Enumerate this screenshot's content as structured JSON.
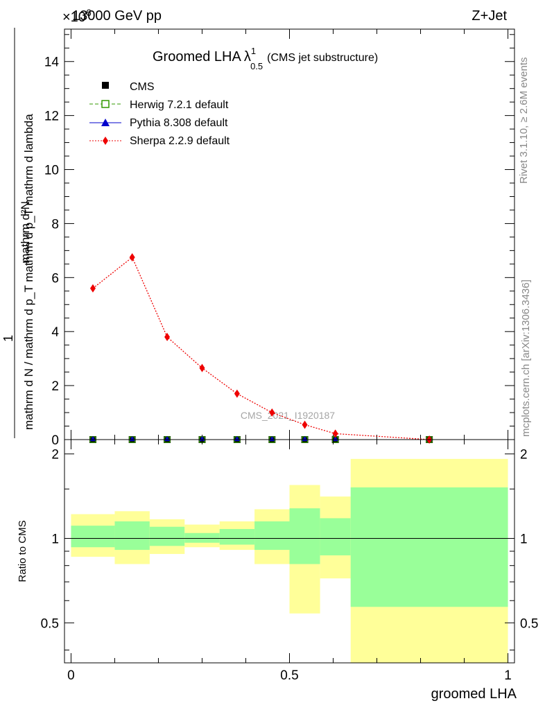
{
  "header": {
    "left": "13000 GeV pp",
    "right": "Z+Jet",
    "exponent_base": "×10",
    "exponent": "6"
  },
  "side_labels": {
    "rivet": "Rivet 3.1.10, ≥ 2.6M events",
    "mcplots": "mcplots.cern.ch [arXiv:1306.3436]"
  },
  "watermark": "CMS_2021_I1920187",
  "colors": {
    "cms": "#000000",
    "herwig": "#339900",
    "pythia": "#0000cc",
    "sherpa": "#ee0000",
    "band_inner": "#99ff99",
    "band_outer": "#ffff99"
  },
  "chart_data": [
    {
      "type": "line",
      "title_main": "Groomed LHA",
      "title_symbol": "λ",
      "title_sup": "1",
      "title_sub": "0.5",
      "title_note": "(CMS jet substructure)",
      "ylabel_numerator": "1",
      "ylabel_denominator": "mathrm d N / mathrm d p_T mathrm d p_T mathrm d lambda",
      "ylabel_top": "mathrm d²N",
      "ylabel_bottom": "mathrm d N / mathrm d p_T mathrm d p_T mathrm d lambda",
      "xlim": [
        -0.015,
        1.015
      ],
      "ylim": [
        0,
        15.2
      ],
      "y_scale_factor": "×10^6",
      "yticks": [
        0,
        2,
        4,
        6,
        8,
        10,
        12,
        14
      ],
      "ytick_labels": [
        "0",
        "2",
        "4",
        "6",
        "8",
        "10",
        "12",
        "14"
      ],
      "grid": false,
      "legend_position": "top-left",
      "legend": [
        {
          "key": "cms",
          "label": "CMS"
        },
        {
          "key": "herwig",
          "label": "Herwig 7.2.1 default"
        },
        {
          "key": "pythia",
          "label": "Pythia 8.308 default"
        },
        {
          "key": "sherpa",
          "label": "Sherpa 2.2.9 default"
        }
      ],
      "x_points": [
        0.05,
        0.14,
        0.22,
        0.3,
        0.38,
        0.46,
        0.535,
        0.605,
        0.82
      ],
      "series": [
        {
          "name": "CMS",
          "key": "cms",
          "values": [
            0,
            0,
            0,
            0,
            0,
            0,
            0,
            0,
            0
          ]
        },
        {
          "name": "Herwig 7.2.1 default",
          "key": "herwig",
          "values": [
            0,
            0,
            0,
            0,
            0,
            0,
            0,
            0,
            0
          ]
        },
        {
          "name": "Pythia 8.308 default",
          "key": "pythia",
          "values": [
            0,
            0,
            0,
            0,
            0,
            0,
            0,
            0,
            0
          ]
        },
        {
          "name": "Sherpa 2.2.9 default",
          "key": "sherpa",
          "values": [
            5.6,
            6.75,
            3.8,
            2.65,
            1.7,
            1.0,
            0.55,
            0.22,
            0.0
          ]
        }
      ]
    },
    {
      "type": "area",
      "ylabel": "Ratio to CMS",
      "xlabel": "groomed LHA",
      "xlim": [
        -0.015,
        1.015
      ],
      "ylim": [
        0.36,
        2.25
      ],
      "y_scale": "log",
      "yticks": [
        0.5,
        1,
        2
      ],
      "ytick_labels": [
        "0.5",
        "1",
        "2"
      ],
      "xticks": [
        0,
        0.5,
        1
      ],
      "xtick_labels": [
        "0",
        "0.5",
        "1"
      ],
      "reference_line": 1,
      "bins": [
        {
          "lo": 0.0,
          "hi": 0.1,
          "inner": [
            0.93,
            1.11
          ],
          "outer": [
            0.86,
            1.22
          ]
        },
        {
          "lo": 0.1,
          "hi": 0.18,
          "inner": [
            0.91,
            1.15
          ],
          "outer": [
            0.81,
            1.25
          ]
        },
        {
          "lo": 0.18,
          "hi": 0.26,
          "inner": [
            0.94,
            1.1
          ],
          "outer": [
            0.88,
            1.17
          ]
        },
        {
          "lo": 0.26,
          "hi": 0.34,
          "inner": [
            0.965,
            1.045
          ],
          "outer": [
            0.93,
            1.12
          ]
        },
        {
          "lo": 0.34,
          "hi": 0.42,
          "inner": [
            0.95,
            1.08
          ],
          "outer": [
            0.91,
            1.15
          ]
        },
        {
          "lo": 0.42,
          "hi": 0.5,
          "inner": [
            0.91,
            1.15
          ],
          "outer": [
            0.81,
            1.27
          ]
        },
        {
          "lo": 0.5,
          "hi": 0.57,
          "inner": [
            0.81,
            1.28
          ],
          "outer": [
            0.54,
            1.55
          ]
        },
        {
          "lo": 0.57,
          "hi": 0.64,
          "inner": [
            0.87,
            1.18
          ],
          "outer": [
            0.72,
            1.41
          ]
        },
        {
          "lo": 0.64,
          "hi": 1.0,
          "inner": [
            0.57,
            1.52
          ],
          "outer": [
            0.36,
            1.92
          ]
        }
      ]
    }
  ]
}
